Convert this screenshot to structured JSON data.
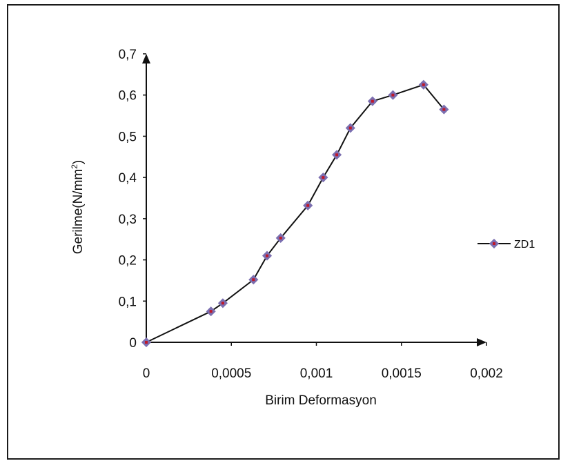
{
  "chart_data": {
    "type": "line",
    "xlabel": "Birim Deformasyon",
    "ylabel": "Gerilme(N/mm",
    "ylabel_sup": "2",
    "ylabel_end": ")",
    "xlim": [
      0,
      0.002
    ],
    "ylim": [
      0,
      0.7
    ],
    "x_ticks": [
      0,
      0.0005,
      0.001,
      0.0015,
      0.002
    ],
    "x_tick_labels": [
      "0",
      "0,0005",
      "0,001",
      "0,0015",
      "0,002"
    ],
    "y_ticks": [
      0,
      0.1,
      0.2,
      0.3,
      0.4,
      0.5,
      0.6,
      0.7
    ],
    "y_tick_labels": [
      "0",
      "0,1",
      "0,2",
      "0,3",
      "0,4",
      "0,5",
      "0,6",
      "0,7"
    ],
    "grid": false,
    "legend_position": "right",
    "series": [
      {
        "name": "ZD1",
        "line_color": "#111111",
        "marker_color": "#7b6fb0",
        "marker_center_color": "#c0182a",
        "x": [
          0,
          0.00038,
          0.00045,
          0.00063,
          0.00071,
          0.00079,
          0.00095,
          0.00104,
          0.00112,
          0.0012,
          0.00133,
          0.00145,
          0.00163,
          0.00175
        ],
        "y": [
          0,
          0.075,
          0.095,
          0.152,
          0.21,
          0.253,
          0.332,
          0.4,
          0.455,
          0.52,
          0.585,
          0.6,
          0.625,
          0.565
        ]
      }
    ]
  }
}
